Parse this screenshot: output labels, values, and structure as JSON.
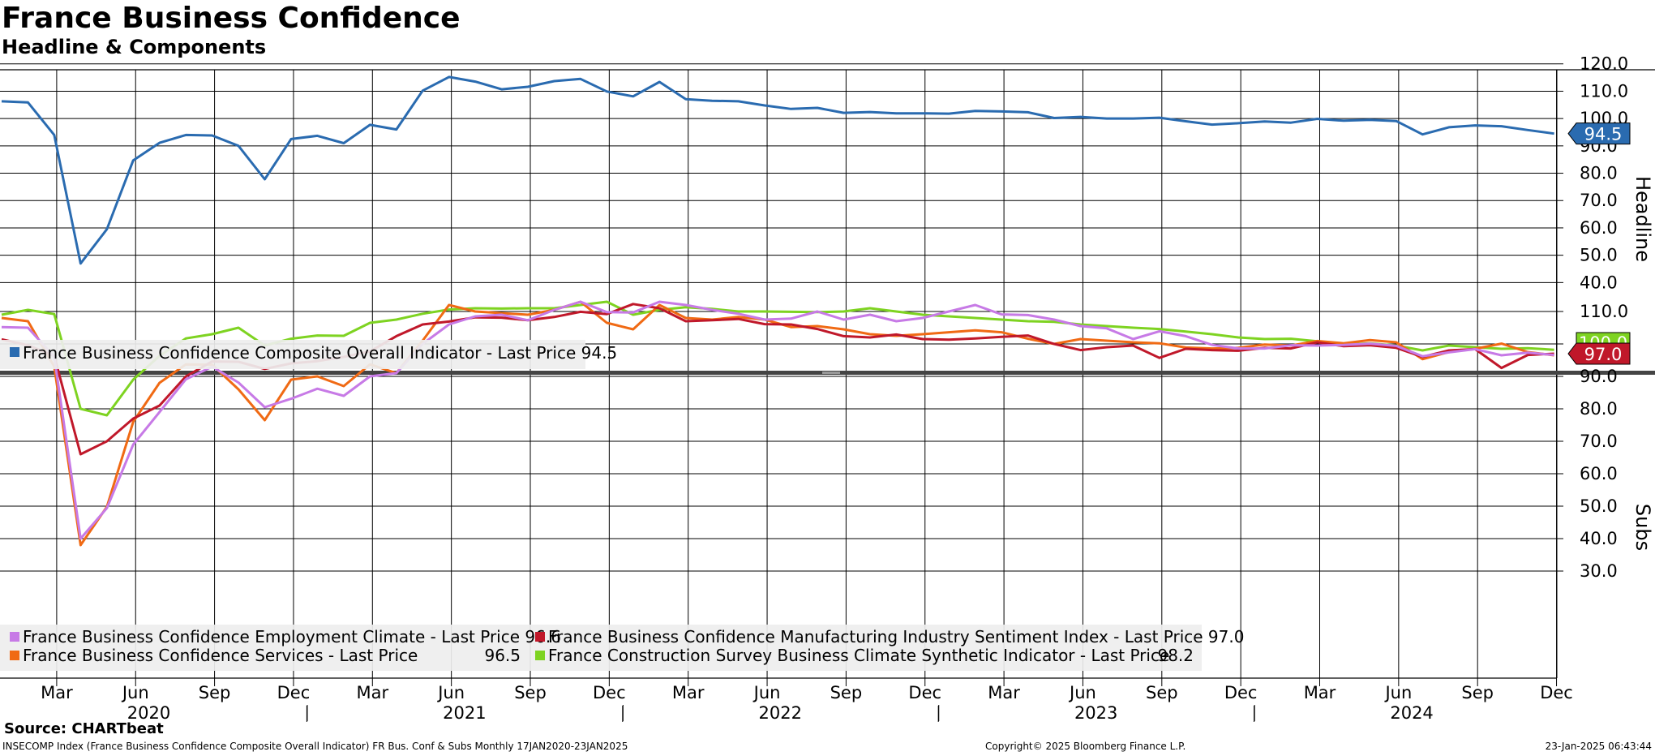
{
  "header": {
    "title": "France Business Confidence",
    "subtitle": "Headline & Components"
  },
  "source": "Source: CHARTbeat",
  "footer": {
    "description": "INSECOMP Index (France Business Confidence Composite Overall Indicator) FR Bus. Conf & Subs  Monthly 17JAN2020-23JAN2025",
    "copyright": "Copyright© 2025 Bloomberg Finance L.P.",
    "timestamp": "23-Jan-2025 06:43:44"
  },
  "colors": {
    "composite": "#2a6bb0",
    "employment": "#c77ae6",
    "manufacturing": "#c0182a",
    "services": "#f06a14",
    "construction": "#7ed321",
    "grid": "#000000"
  },
  "chart_data": [
    {
      "type": "line",
      "panel": "Headline",
      "ylabel": "Headline",
      "ylim": [
        36,
        122
      ],
      "yticks": [
        "120.0",
        "110.0",
        "100.0",
        "90.0",
        "80.0",
        "70.0",
        "60.0",
        "50.0",
        "40.0"
      ],
      "x_months": [
        "Jan 2020",
        "Feb 2020",
        "Mar 2020",
        "Apr 2020",
        "May 2020",
        "Jun 2020",
        "Jul 2020",
        "Aug 2020",
        "Sep 2020",
        "Oct 2020",
        "Nov 2020",
        "Dec 2020",
        "Jan 2021",
        "Feb 2021",
        "Mar 2021",
        "Apr 2021",
        "May 2021",
        "Jun 2021",
        "Jul 2021",
        "Aug 2021",
        "Sep 2021",
        "Oct 2021",
        "Nov 2021",
        "Dec 2021",
        "Jan 2022",
        "Feb 2022",
        "Mar 2022",
        "Apr 2022",
        "May 2022",
        "Jun 2022",
        "Jul 2022",
        "Aug 2022",
        "Sep 2022",
        "Oct 2022",
        "Nov 2022",
        "Dec 2022",
        "Jan 2023",
        "Feb 2023",
        "Mar 2023",
        "Apr 2023",
        "May 2023",
        "Jun 2023",
        "Jul 2023",
        "Aug 2023",
        "Sep 2023",
        "Oct 2023",
        "Nov 2023",
        "Dec 2023",
        "Jan 2024",
        "Feb 2024",
        "Mar 2024",
        "Apr 2024",
        "May 2024",
        "Jun 2024",
        "Jul 2024",
        "Aug 2024",
        "Sep 2024",
        "Oct 2024",
        "Nov 2024",
        "Dec 2024"
      ],
      "series": [
        {
          "key": "composite",
          "legend": "France Business Confidence Composite Overall Indicator  - Last Price 94.5",
          "last_label": "94.5",
          "values": [
            106.3,
            105.9,
            94.0,
            47.0,
            59.5,
            84.7,
            91.1,
            94.0,
            93.8,
            90.0,
            77.8,
            92.5,
            93.7,
            91.0,
            97.7,
            96.0,
            110.2,
            115.2,
            113.5,
            110.7,
            111.6,
            113.7,
            114.5,
            109.9,
            108.1,
            113.4,
            107.1,
            106.5,
            106.3,
            104.8,
            103.5,
            103.9,
            102.1,
            102.4,
            101.9,
            101.9,
            101.8,
            102.8,
            102.6,
            102.3,
            100.2,
            100.6,
            100.0,
            100.0,
            100.3,
            99.0,
            97.8,
            98.3,
            98.9,
            98.5,
            99.9,
            99.2,
            99.5,
            99.1,
            94.2,
            96.8,
            97.5,
            97.2,
            95.8,
            94.5
          ]
        }
      ]
    },
    {
      "type": "line",
      "panel": "Subs",
      "ylabel": "Subs",
      "ylim": [
        27,
        116
      ],
      "yticks": [
        "110.0",
        "100.0",
        "90.0",
        "80.0",
        "70.0",
        "60.0",
        "50.0",
        "40.0",
        "30.0"
      ],
      "xaxis_months": [
        "Mar",
        "Jun",
        "Sep",
        "Dec",
        "Mar",
        "Jun",
        "Sep",
        "Dec",
        "Mar",
        "Jun",
        "Sep",
        "Dec",
        "Mar",
        "Jun",
        "Sep",
        "Dec",
        "Mar",
        "Jun",
        "Sep",
        "Dec"
      ],
      "xaxis_years": [
        "2020",
        "2021",
        "2022",
        "2023",
        "2024"
      ],
      "series": [
        {
          "key": "employment",
          "legend": "France Business Confidence Employment Climate  - Last Price 96.6",
          "values": [
            105.2,
            105.0,
            96.0,
            40.0,
            49.4,
            69.0,
            79.0,
            89.1,
            93.0,
            88.1,
            80.5,
            83.1,
            86.2,
            84.0,
            90.0,
            91.0,
            100.0,
            106.0,
            108.5,
            109.0,
            107.3,
            110.5,
            113.0,
            109.8,
            109.7,
            113.0,
            112.0,
            110.5,
            109.3,
            107.5,
            107.8,
            110.0,
            107.5,
            109.0,
            107.0,
            108.0,
            110.0,
            112.0,
            109.1,
            108.9,
            107.5,
            105.5,
            104.8,
            101.5,
            103.9,
            102.4,
            99.7,
            98.6,
            98.6,
            99.6,
            99.5,
            99.7,
            100.1,
            99.4,
            96.2,
            97.4,
            98.4,
            96.5,
            97.3,
            96.6
          ]
        },
        {
          "key": "manufacturing",
          "legend": "France Business Confidence Manufacturing Industry Sentiment Index  - Last Price 97.0",
          "values": [
            101.4,
            99.6,
            96.3,
            66.0,
            70.0,
            77.0,
            81.0,
            90.0,
            94.6,
            94.5,
            92.3,
            94.0,
            94.7,
            96.0,
            97.7,
            102.4,
            106.0,
            106.9,
            108.2,
            108.1,
            107.3,
            108.3,
            109.9,
            109.2,
            112.3,
            111.0,
            107.0,
            107.3,
            107.7,
            106.1,
            106.0,
            104.6,
            102.4,
            102.0,
            102.9,
            101.5,
            101.3,
            101.7,
            102.2,
            102.6,
            100.0,
            98.1,
            99.0,
            99.5,
            95.7,
            98.5,
            98.1,
            97.9,
            98.8,
            98.6,
            100.5,
            99.3,
            99.6,
            98.8,
            96.0,
            98.0,
            98.4,
            92.6,
            96.6,
            97.0
          ]
        },
        {
          "key": "services",
          "legend": "France Business Confidence Services  - Last Price",
          "legend_value": "96.5",
          "values": [
            108.0,
            107.0,
            93.0,
            38.0,
            49.8,
            76.0,
            88.0,
            93.7,
            93.6,
            86.0,
            76.5,
            89.0,
            90.0,
            87.0,
            93.7,
            91.0,
            101.0,
            112.0,
            110.0,
            109.5,
            109.0,
            110.5,
            113.0,
            106.5,
            104.5,
            112.0,
            108.0,
            107.5,
            108.3,
            107.5,
            105.2,
            105.5,
            104.5,
            103.0,
            102.5,
            103.0,
            103.6,
            104.2,
            103.6,
            101.6,
            100.0,
            101.5,
            101.0,
            100.5,
            100.2,
            98.9,
            98.6,
            98.8,
            99.8,
            99.5,
            100.9,
            100.2,
            101.2,
            100.5,
            95.3,
            97.5,
            98.5,
            100.1,
            97.5,
            96.5
          ]
        },
        {
          "key": "construction",
          "legend": "France Construction Survey Business Climate Synthetic Indicator  - Last Price",
          "legend_value": "98.2",
          "values": [
            109.0,
            110.5,
            109.2,
            80.0,
            78.0,
            89.0,
            96.3,
            101.7,
            103.0,
            105.0,
            99.5,
            101.6,
            102.6,
            102.5,
            106.5,
            107.5,
            109.3,
            110.6,
            111.0,
            110.9,
            111.0,
            111.0,
            112.0,
            113.0,
            109.0,
            110.5,
            111.3,
            110.8,
            110.0,
            110.0,
            109.9,
            109.8,
            110.0,
            111.0,
            110.0,
            109.0,
            108.5,
            108.0,
            107.5,
            107.0,
            106.8,
            106.0,
            105.5,
            105.0,
            104.6,
            103.8,
            103.0,
            102.0,
            101.5,
            101.6,
            100.8,
            99.8,
            100.2,
            99.5,
            98.0,
            99.5,
            99.0,
            98.5,
            98.7,
            98.2
          ]
        }
      ],
      "last_label": "97.0",
      "last_label_hidden": "100.0"
    }
  ]
}
